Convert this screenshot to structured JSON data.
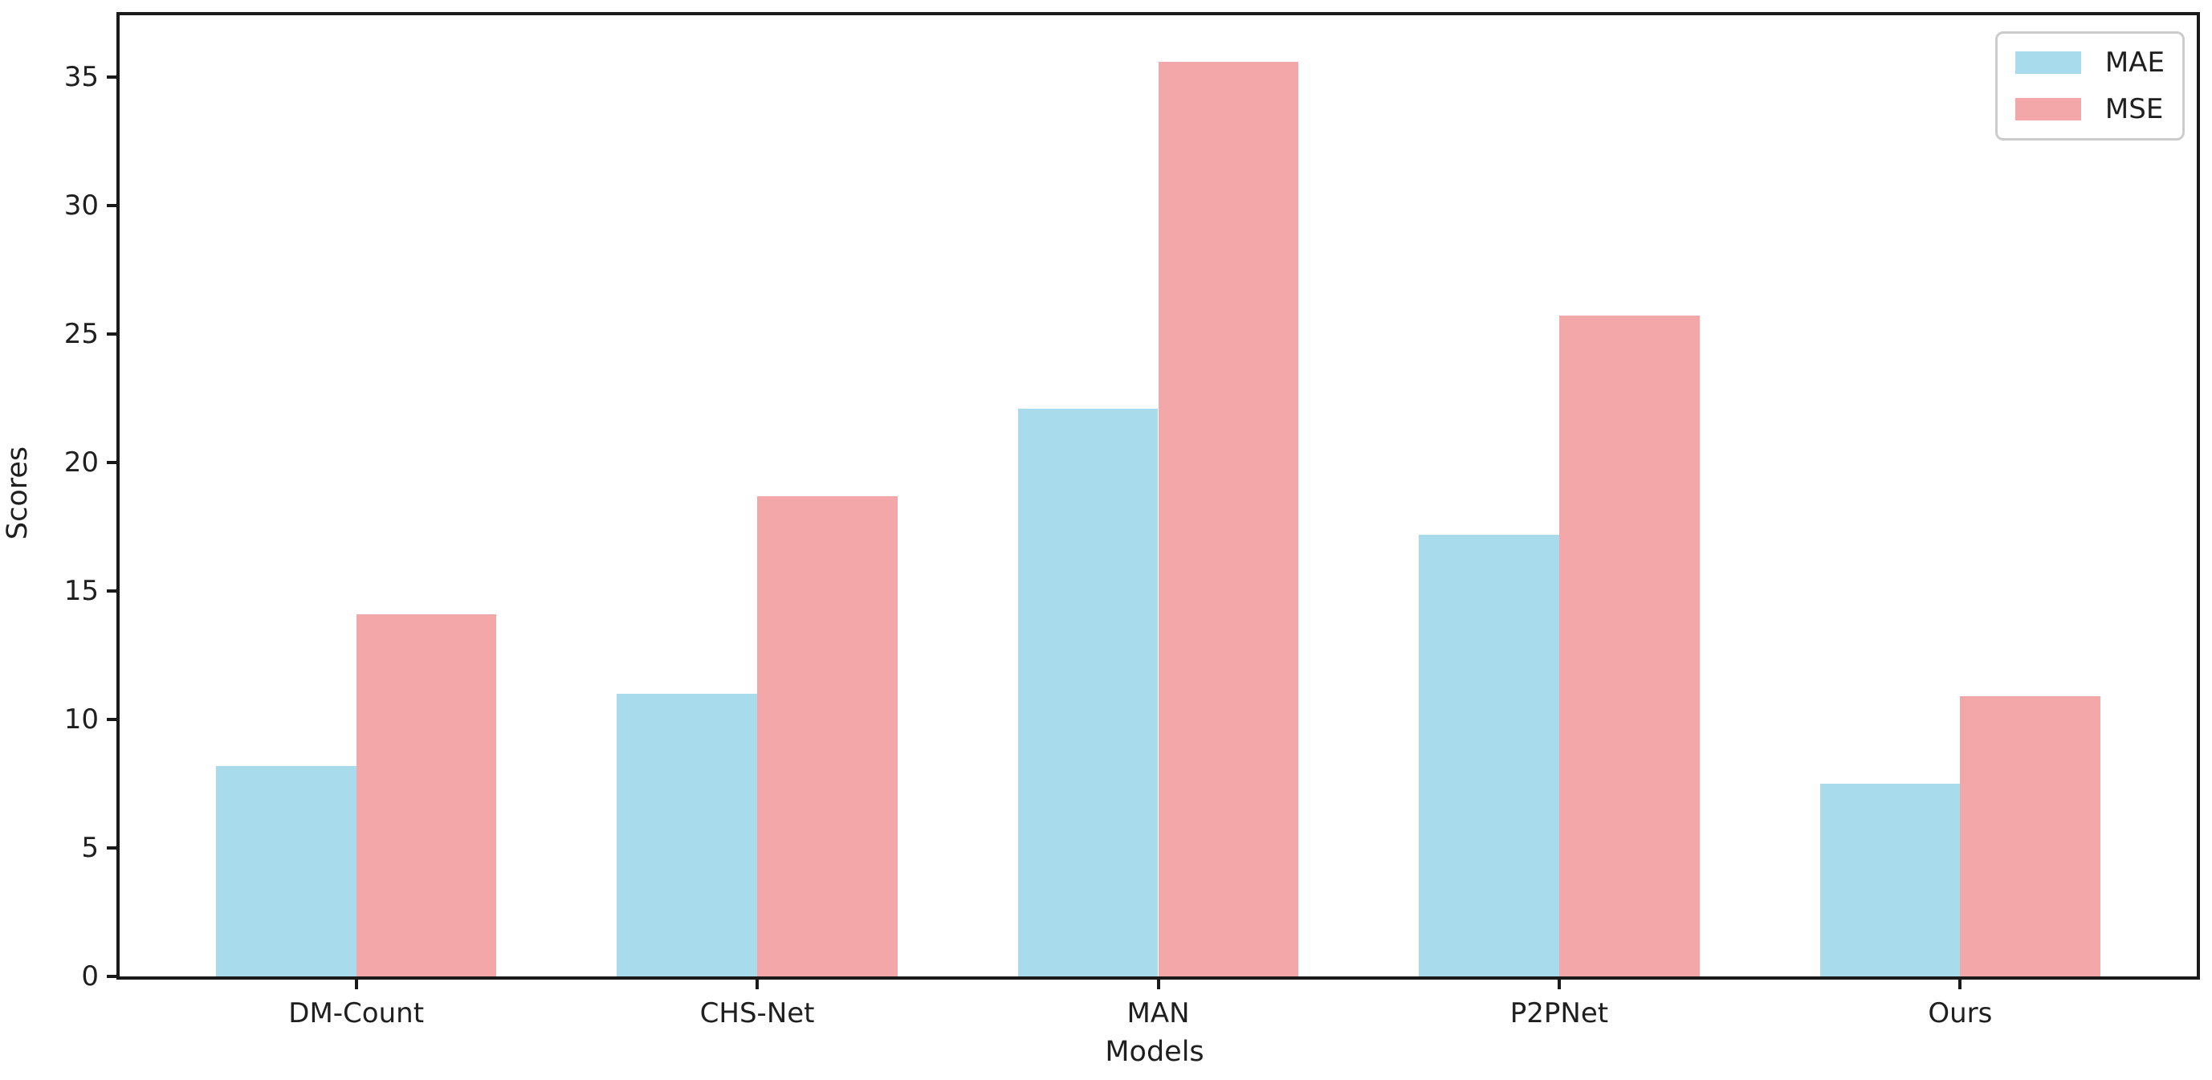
{
  "chart_data": {
    "type": "bar",
    "title": "",
    "xlabel": "Models",
    "ylabel": "Scores",
    "categories": [
      "DM-Count",
      "CHS-Net",
      "MAN",
      "P2PNet",
      "Ours"
    ],
    "series": [
      {
        "name": "MAE",
        "color": "#a8dbec",
        "values": [
          8.2,
          11.0,
          22.1,
          17.2,
          7.5
        ]
      },
      {
        "name": "MSE",
        "color": "#f4a7a9",
        "values": [
          14.1,
          18.7,
          35.6,
          25.7,
          10.9
        ]
      }
    ],
    "y_ticks": [
      0,
      5,
      10,
      15,
      20,
      25,
      30,
      35
    ],
    "ylim": [
      0,
      37.4
    ],
    "xlim": [
      -0.59,
      4.59
    ],
    "bar_width": 0.35,
    "grid": false,
    "legend_position": "upper right",
    "spine_color": "#1a1a1a"
  }
}
